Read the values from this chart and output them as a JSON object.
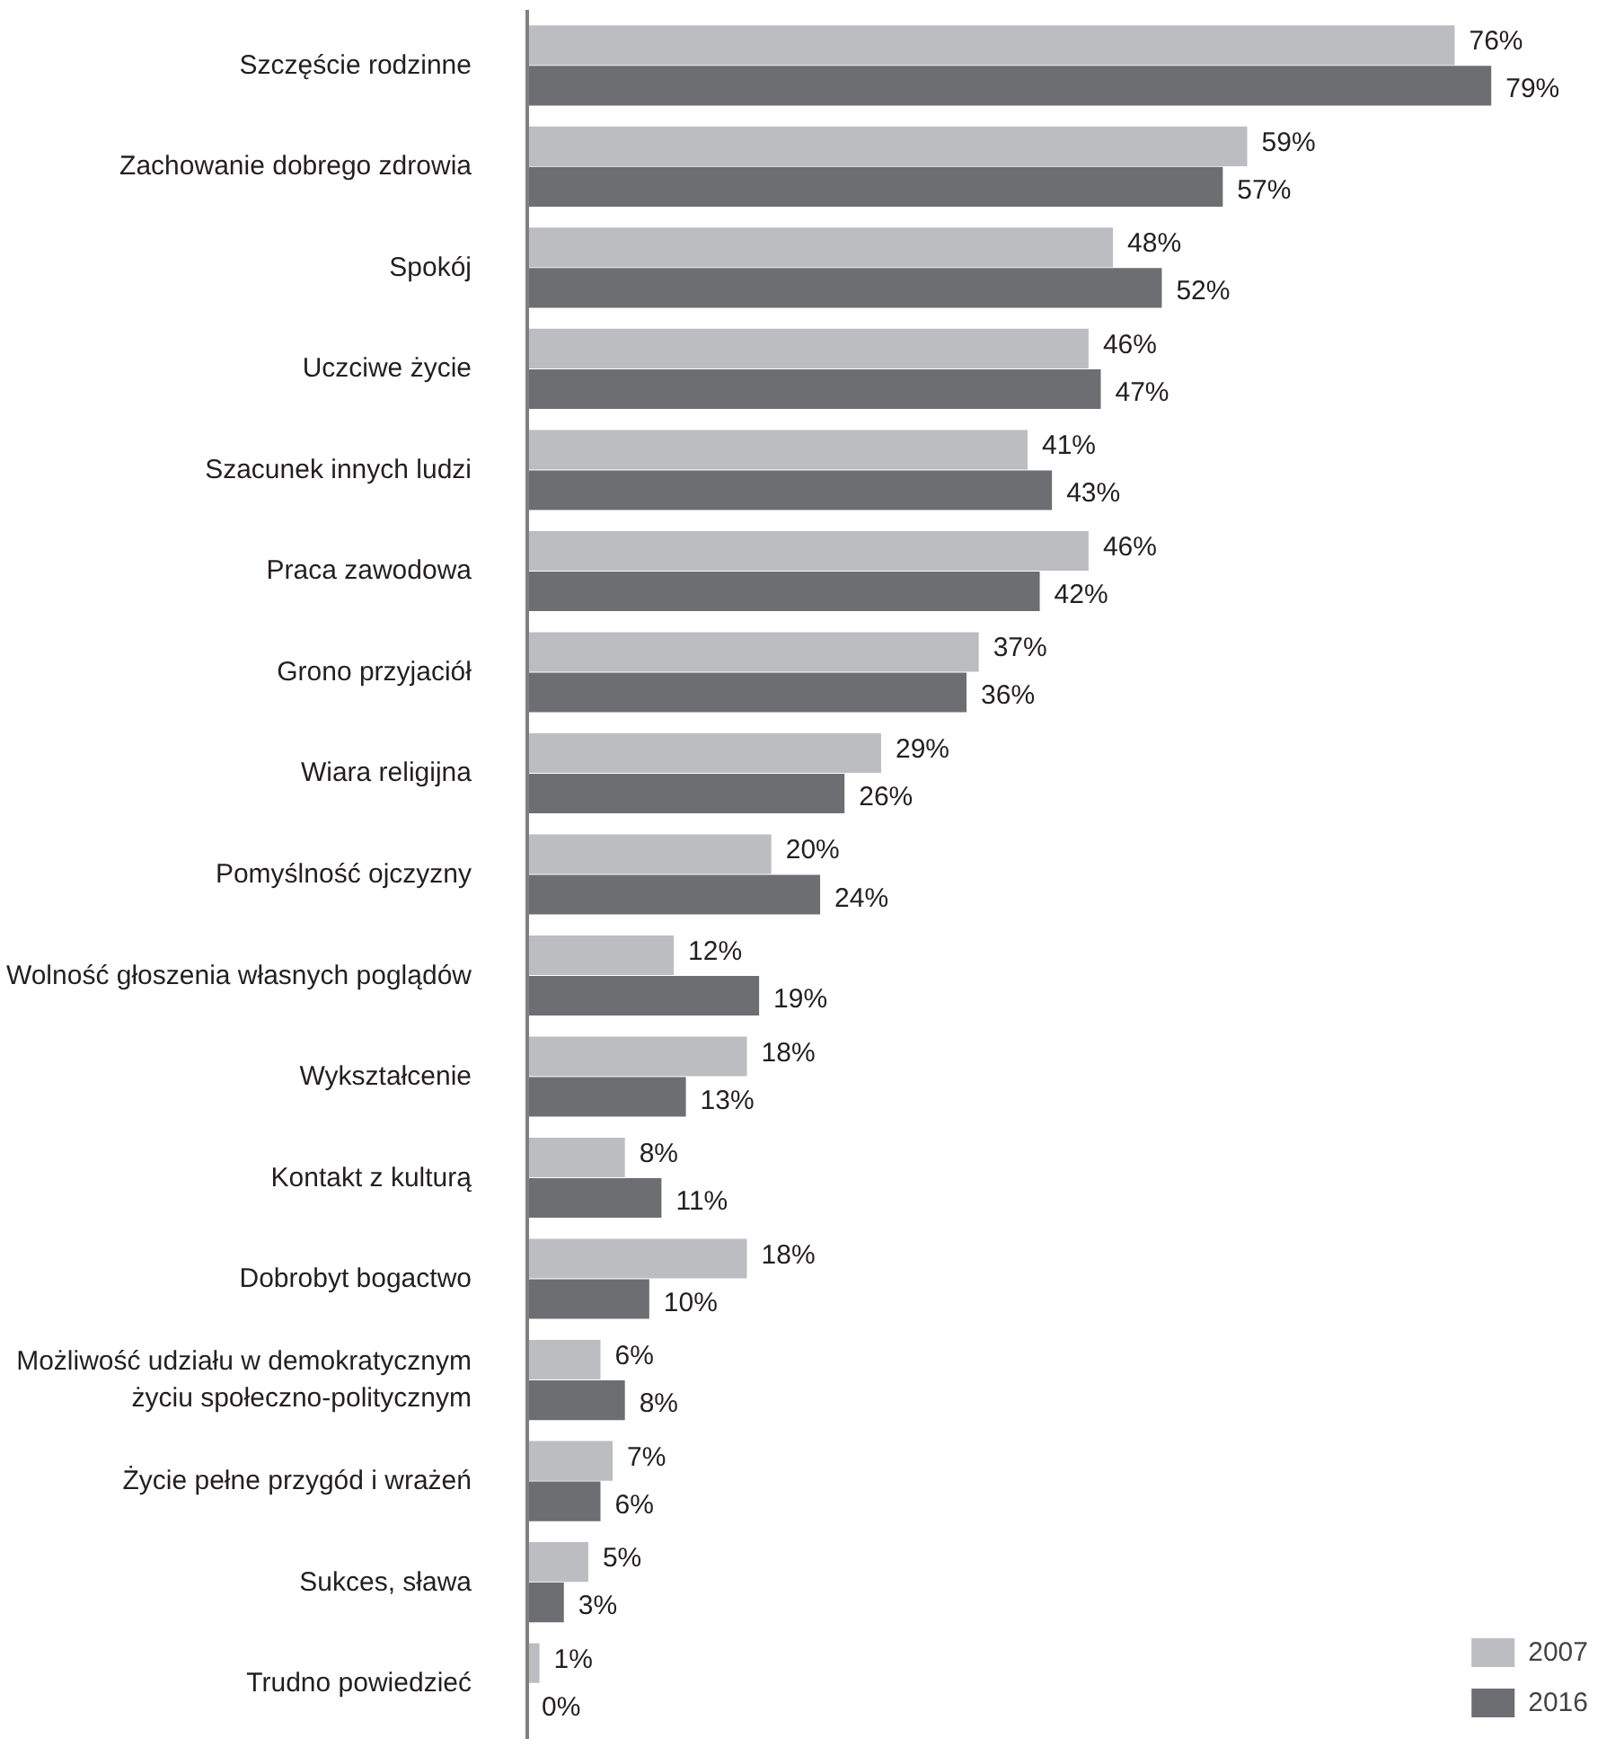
{
  "chart_data": {
    "type": "bar",
    "orientation": "horizontal",
    "legend": "bottom right",
    "grid": false,
    "categories": [
      "Szczęście rodzinne",
      "Zachowanie dobrego zdrowia",
      "Spokój",
      "Uczciwe życie",
      "Szacunek innych ludzi",
      "Praca zawodowa",
      "Grono przyjaciół",
      "Wiara religijna",
      "Pomyślność ojczyzny",
      "Wolność głoszenia własnych poglądów",
      "Wykształcenie",
      "Kontakt z kulturą",
      "Dobrobyt bogactwo",
      "Możliwość udziału w demokratycznym życiu społeczno-politycznym",
      "Życie pełne przygód i wrażeń",
      "Sukces, sława",
      "Trudno powiedzieć"
    ],
    "series": [
      {
        "name": "2007",
        "color": "#bcbdc0",
        "values": [
          76,
          59,
          48,
          46,
          41,
          46,
          37,
          29,
          20,
          12,
          18,
          8,
          18,
          6,
          7,
          5,
          1
        ],
        "value_labels": [
          "76%",
          "59%",
          "48%",
          "46%",
          "41%",
          "46%",
          "37%",
          "29%",
          "20%",
          "12%",
          "18%",
          "8%",
          "18%",
          "6%",
          "7%",
          "5%",
          "1%"
        ]
      },
      {
        "name": "2016",
        "color": "#6d6e71",
        "values": [
          79,
          57,
          52,
          47,
          43,
          42,
          36,
          26,
          24,
          19,
          13,
          11,
          10,
          8,
          6,
          3,
          0
        ],
        "value_labels": [
          "79%",
          "57%",
          "52%",
          "47%",
          "43%",
          "42%",
          "36%",
          "26%",
          "24%",
          "19%",
          "13%",
          "11%",
          "10%",
          "8%",
          "6%",
          "3%",
          "0%"
        ]
      }
    ]
  }
}
